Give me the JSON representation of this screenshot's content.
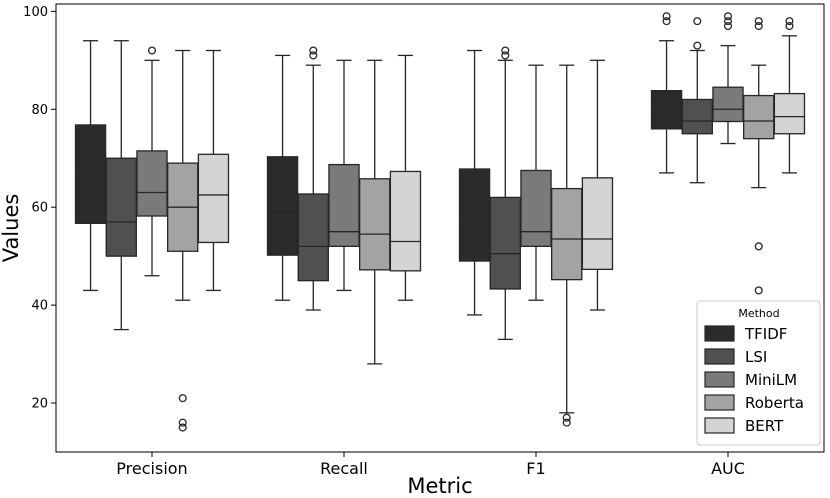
{
  "chart_data": {
    "type": "boxplot",
    "xlabel": "Metric",
    "ylabel": "Values",
    "ylim": [
      10,
      101.5
    ],
    "yticks": [
      20,
      40,
      60,
      80,
      100
    ],
    "categories": [
      "Precision",
      "Recall",
      "F1",
      "AUC"
    ],
    "legend": {
      "title": "Method",
      "placement": "lower-right"
    },
    "series": [
      {
        "name": "TFIDF",
        "color": "#2b2b2b",
        "boxes": [
          {
            "whislo": 43,
            "q1": 56.7,
            "med": 67,
            "q3": 76.8,
            "whishi": 94,
            "fliers": []
          },
          {
            "whislo": 41,
            "q1": 50.2,
            "med": 59,
            "q3": 70.3,
            "whishi": 91,
            "fliers": []
          },
          {
            "whislo": 38,
            "q1": 49,
            "med": 57,
            "q3": 67.8,
            "whishi": 92,
            "fliers": []
          },
          {
            "whislo": 67,
            "q1": 76,
            "med": 81,
            "q3": 83.8,
            "whishi": 94,
            "fliers": [
              98,
              99
            ]
          }
        ]
      },
      {
        "name": "LSI",
        "color": "#505050",
        "boxes": [
          {
            "whislo": 35,
            "q1": 50,
            "med": 57,
            "q3": 70,
            "whishi": 94,
            "fliers": []
          },
          {
            "whislo": 39,
            "q1": 45,
            "med": 52,
            "q3": 62.7,
            "whishi": 89,
            "fliers": [
              91,
              92
            ]
          },
          {
            "whislo": 33,
            "q1": 43.3,
            "med": 50.5,
            "q3": 62,
            "whishi": 90,
            "fliers": [
              91,
              92
            ]
          },
          {
            "whislo": 65,
            "q1": 75,
            "med": 77.6,
            "q3": 82,
            "whishi": 92,
            "fliers": [
              93,
              98
            ]
          }
        ]
      },
      {
        "name": "MiniLM",
        "color": "#7a7a7a",
        "boxes": [
          {
            "whislo": 46,
            "q1": 58.2,
            "med": 63,
            "q3": 71.5,
            "whishi": 90,
            "fliers": [
              92
            ]
          },
          {
            "whislo": 43,
            "q1": 52,
            "med": 55,
            "q3": 68.7,
            "whishi": 90,
            "fliers": []
          },
          {
            "whislo": 41,
            "q1": 52,
            "med": 55,
            "q3": 67.5,
            "whishi": 89,
            "fliers": []
          },
          {
            "whislo": 73,
            "q1": 77.5,
            "med": 80,
            "q3": 84.5,
            "whishi": 93,
            "fliers": [
              97,
              98,
              99
            ]
          }
        ]
      },
      {
        "name": "Roberta",
        "color": "#a3a3a3",
        "boxes": [
          {
            "whislo": 41,
            "q1": 51,
            "med": 60,
            "q3": 69,
            "whishi": 92,
            "fliers": [
              15,
              16,
              21
            ]
          },
          {
            "whislo": 28,
            "q1": 47.2,
            "med": 54.5,
            "q3": 65.8,
            "whishi": 90,
            "fliers": []
          },
          {
            "whislo": 18,
            "q1": 45.2,
            "med": 53.5,
            "q3": 63.8,
            "whishi": 89,
            "fliers": [
              16,
              17
            ]
          },
          {
            "whislo": 64,
            "q1": 74,
            "med": 77.6,
            "q3": 82.8,
            "whishi": 89,
            "fliers": [
              43,
              52,
              97,
              98
            ]
          }
        ]
      },
      {
        "name": "BERT",
        "color": "#d4d4d4",
        "boxes": [
          {
            "whislo": 43,
            "q1": 52.8,
            "med": 62.5,
            "q3": 70.8,
            "whishi": 92,
            "fliers": []
          },
          {
            "whislo": 41,
            "q1": 47,
            "med": 53,
            "q3": 67.3,
            "whishi": 91,
            "fliers": []
          },
          {
            "whislo": 39,
            "q1": 47.3,
            "med": 53.5,
            "q3": 66,
            "whishi": 90,
            "fliers": []
          },
          {
            "whislo": 67,
            "q1": 75,
            "med": 78.5,
            "q3": 83.2,
            "whishi": 95,
            "fliers": [
              97,
              98
            ]
          }
        ]
      }
    ]
  }
}
